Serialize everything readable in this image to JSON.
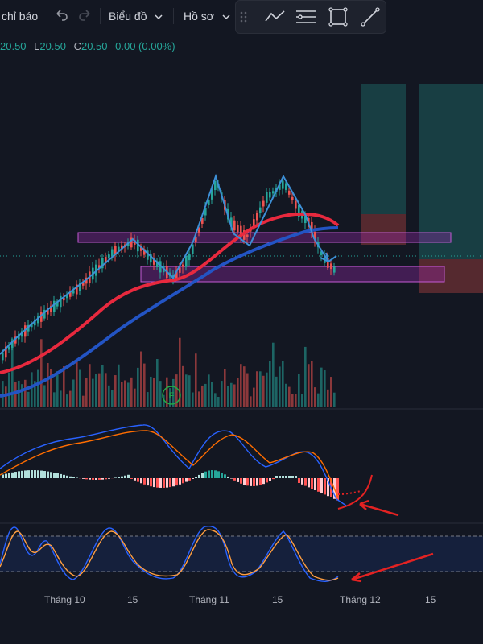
{
  "toolbar": {
    "indicators_label": "chỉ báo",
    "chart_menu_label": "Biểu đồ",
    "profile_menu_label": "Hồ sơ",
    "undo_icon": "undo-icon",
    "redo_icon": "redo-icon"
  },
  "drawing_toolbar": {
    "icons": [
      "drag-handle-icon",
      "trend-line-icon",
      "horizontal-lines-icon",
      "rectangle-icon",
      "line-tool-icon"
    ]
  },
  "ohlc": {
    "high": "20.50",
    "low_label": "L",
    "low": "20.50",
    "close_label": "C",
    "close": "20.50",
    "change": "0.00 (0.00%)"
  },
  "x_axis": {
    "labels": [
      "Tháng 10",
      "15",
      "Tháng 11",
      "15",
      "Tháng 12",
      "15"
    ]
  },
  "colors": {
    "background": "#131722",
    "up": "#26a69a",
    "down": "#ef5350",
    "ma_fast": "#e8293e",
    "ma_slow": "#2354c4",
    "zone": "#9c27b0",
    "annotation": "#e32222"
  },
  "markers": {
    "event_marker_label": "F"
  }
}
